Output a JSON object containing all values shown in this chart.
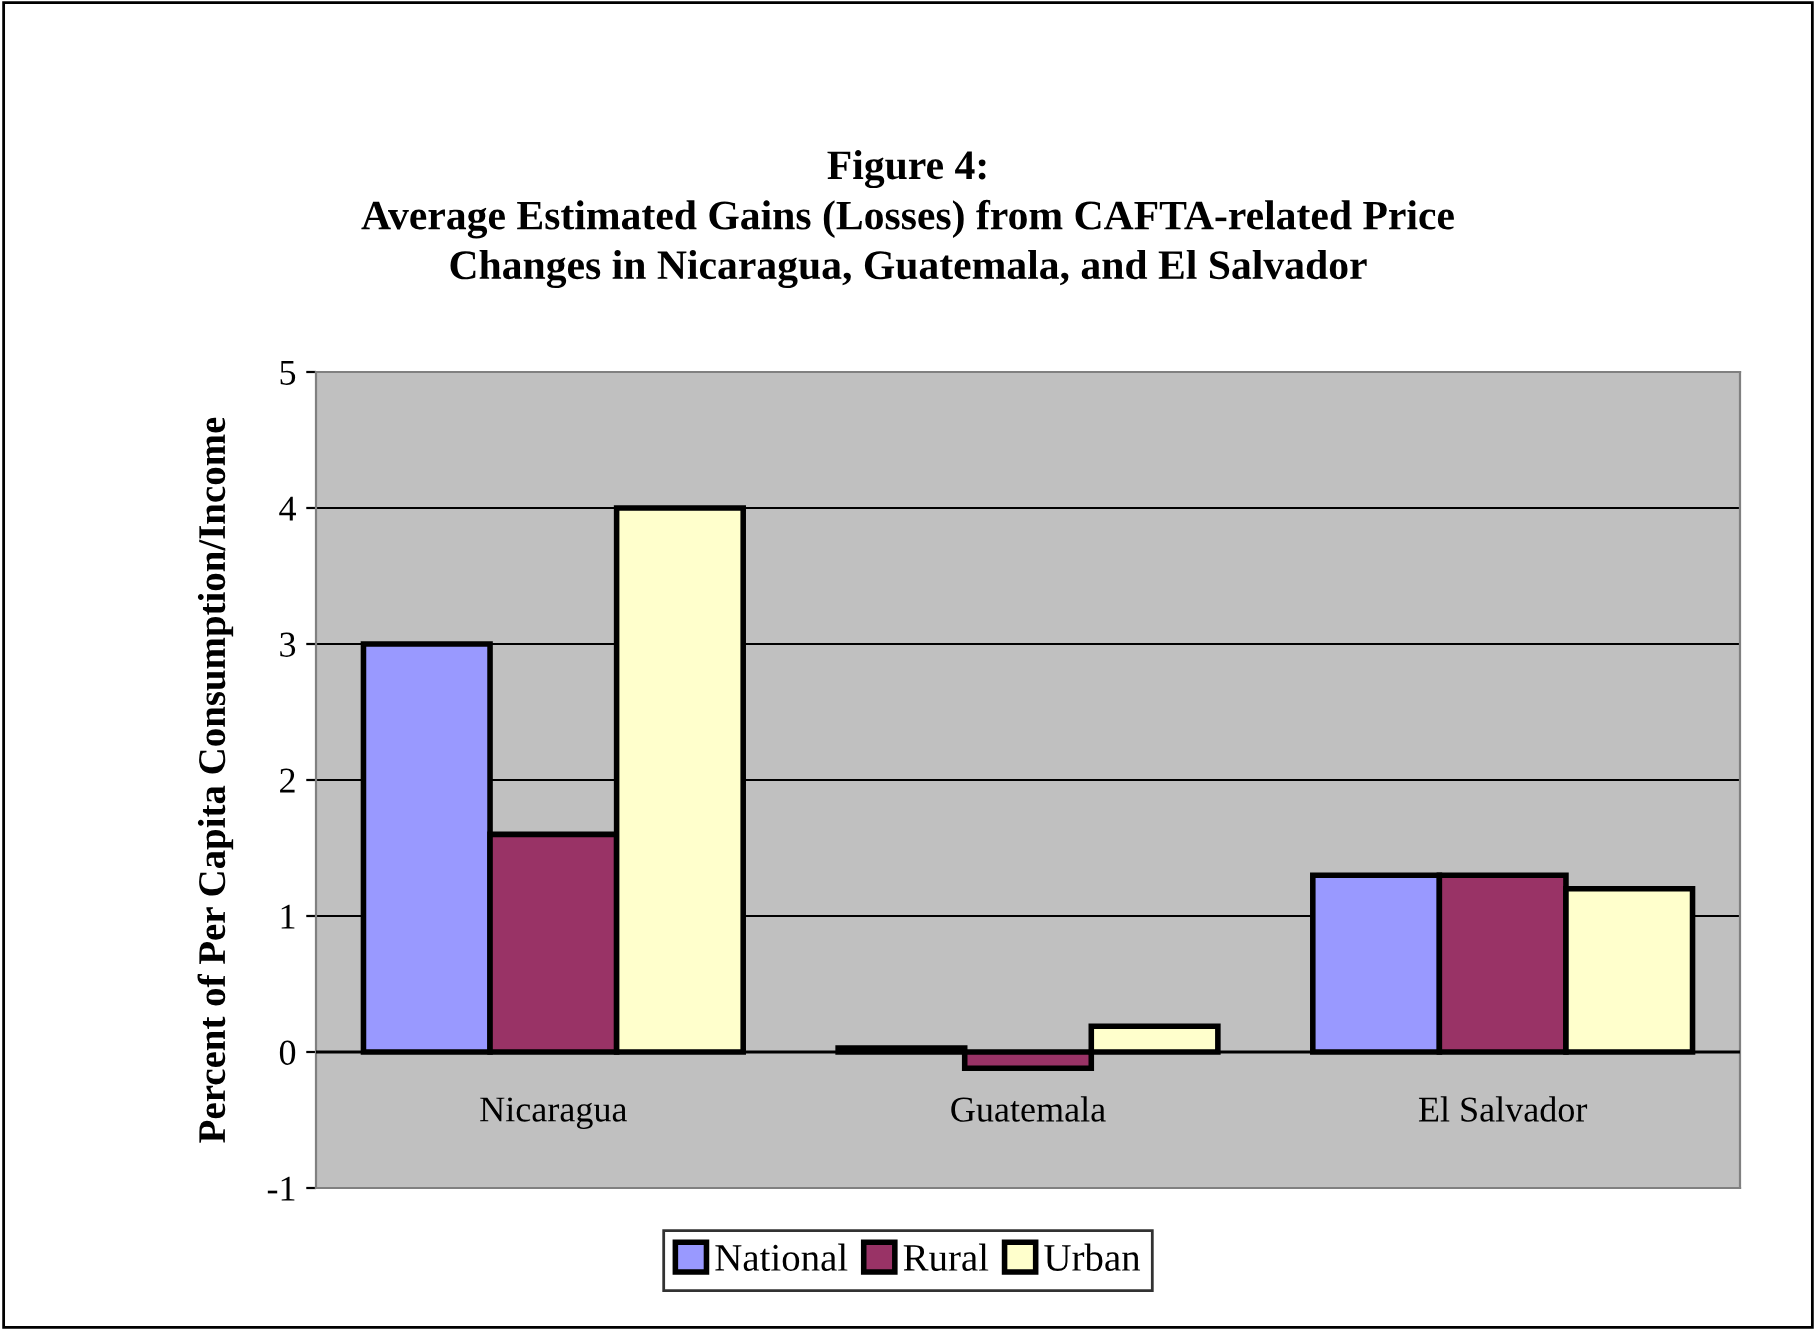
{
  "chart_data": {
    "type": "bar",
    "title": "Figure 4:\nAverage Estimated Gains (Losses) from CAFTA-related Price\nChanges in Nicaragua, Guatemala, and El Salvador",
    "ylabel": "Percent of Per Capita Consumption/Income",
    "categories": [
      "Nicaragua",
      "Guatemala",
      "El Salvador"
    ],
    "series": [
      {
        "name": "National",
        "color": "#9999ff",
        "values": [
          3.0,
          0.03,
          1.3
        ]
      },
      {
        "name": "Rural",
        "color": "#993366",
        "values": [
          1.6,
          -0.12,
          1.3
        ]
      },
      {
        "name": "Urban",
        "color": "#ffffcc",
        "values": [
          4.0,
          0.19,
          1.2
        ]
      }
    ],
    "ylim": [
      -1,
      5
    ],
    "yticks": [
      -1,
      0,
      1,
      2,
      3,
      4,
      5
    ],
    "grid": "y",
    "legend": "bottom"
  }
}
